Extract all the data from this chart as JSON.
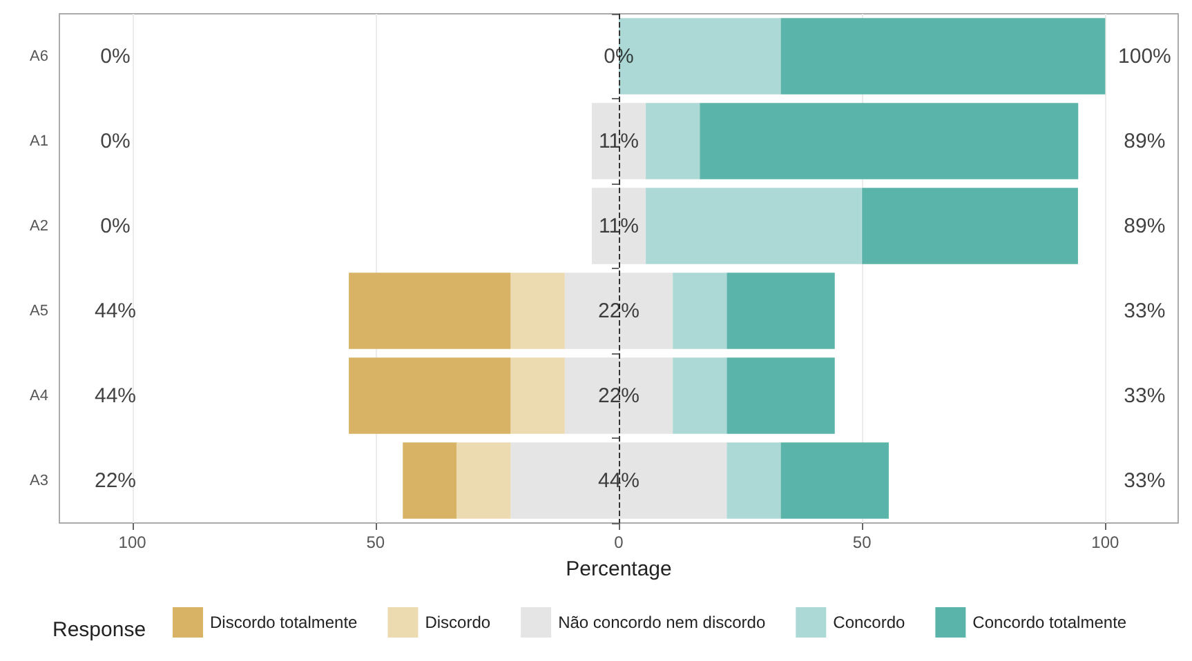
{
  "chart_data": {
    "type": "bar",
    "orientation": "horizontal",
    "xlabel": "Percentage",
    "legend_title": "Response",
    "legend": "bottom",
    "grid": "x",
    "categories": [
      "A6",
      "A1",
      "A2",
      "A5",
      "A4",
      "A3"
    ],
    "xlim": [
      -115,
      115
    ],
    "xticks": [
      {
        "value": -100,
        "label": "100"
      },
      {
        "value": -50,
        "label": "50"
      },
      0,
      50,
      100
    ],
    "series": [
      {
        "name": "Discordo totalmente",
        "color": "#d9b365",
        "values": [
          null,
          null,
          null,
          33.3,
          33.3,
          11.1
        ],
        "base": [
          null,
          null,
          null,
          -55.5,
          -55.5,
          -44.4
        ]
      },
      {
        "name": "Discordo",
        "color": "#ecdab0",
        "values": [
          null,
          null,
          null,
          11.1,
          11.1,
          11.1
        ],
        "base": [
          null,
          null,
          null,
          -22.2,
          -22.2,
          -33.3
        ]
      },
      {
        "name": "Não concordo nem discordo",
        "color": "#e5e5e5",
        "values": [
          null,
          11.1,
          11.1,
          22.2,
          22.2,
          44.4
        ],
        "base": [
          null,
          -5.55,
          -5.55,
          -11.1,
          -11.1,
          -22.2
        ]
      },
      {
        "name": "Concordo",
        "color": "#acd9d5",
        "values": [
          33.3,
          11.1,
          44.4,
          11.1,
          11.1,
          11.1
        ],
        "base": [
          0,
          5.55,
          5.55,
          11.1,
          11.1,
          22.2
        ]
      },
      {
        "name": "Concordo totalmente",
        "color": "#5bb4aa",
        "values": [
          66.7,
          77.8,
          44.4,
          22.2,
          22.2,
          22.2
        ],
        "base": [
          33.3,
          16.65,
          50,
          22.2,
          22.2,
          33.3
        ]
      }
    ],
    "ref_lines": [
      {
        "axis": "x",
        "value": 0,
        "color": "#333333",
        "line_style": "dashed"
      }
    ],
    "annotations": [
      "0%",
      "0%",
      "0%",
      "44%",
      "44%",
      "22%",
      "0%",
      "11%",
      "11%",
      "22%",
      "22%",
      "44%",
      "100%",
      "89%",
      "89%",
      "33%",
      "33%",
      "33%"
    ]
  }
}
